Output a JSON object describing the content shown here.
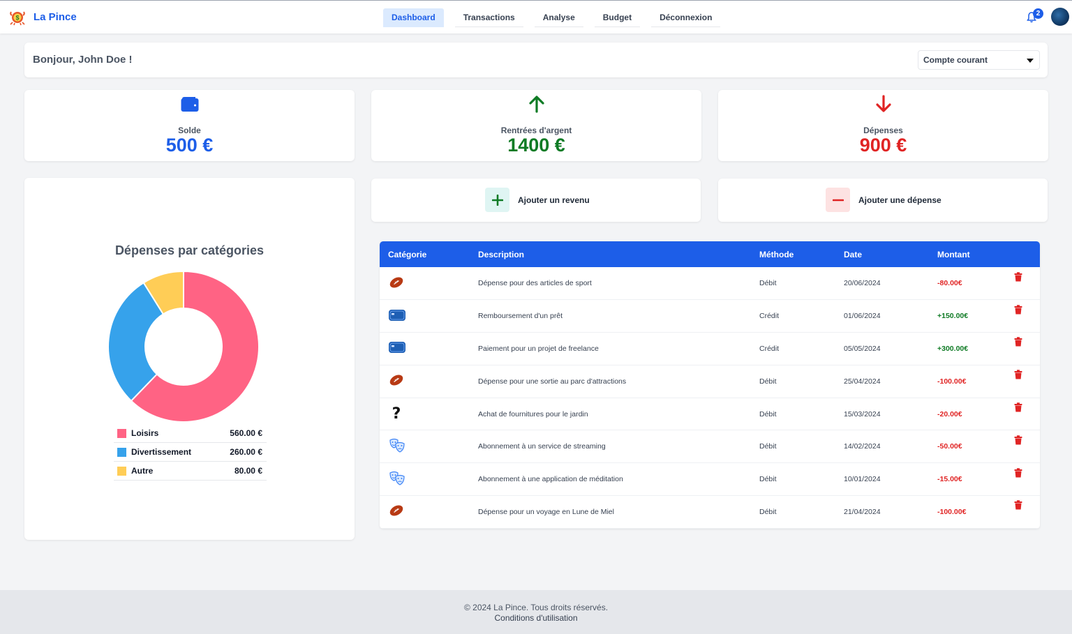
{
  "nav": {
    "brand": "La Pince",
    "links": [
      {
        "label": "Dashboard",
        "active": true
      },
      {
        "label": "Transactions",
        "active": false
      },
      {
        "label": "Analyse",
        "active": false
      },
      {
        "label": "Budget",
        "active": false
      },
      {
        "label": "Déconnexion",
        "active": false
      }
    ],
    "notification_count": "2",
    "icons": {
      "bell": "bell-icon",
      "avatar": "avatar"
    }
  },
  "greeting": "Bonjour, John Doe !",
  "account_select": {
    "value": "Compte courant"
  },
  "stats": {
    "balance": {
      "label": "Solde",
      "value": "500 €",
      "color": "#1d5ee8",
      "icon": "wallet-icon"
    },
    "income": {
      "label": "Rentrées d'argent",
      "value": "1400 €",
      "color": "#0f7b25",
      "icon": "arrow-up-icon"
    },
    "expenses": {
      "label": "Dépenses",
      "value": "900 €",
      "color": "#e02424",
      "icon": "arrow-down-icon"
    }
  },
  "actions": {
    "add_income": "Ajouter un revenu",
    "add_expense": "Ajouter une dépense"
  },
  "chart_data": {
    "type": "pie",
    "title": "Dépenses par catégories",
    "categories": [
      "Loisirs",
      "Divertissement",
      "Autre"
    ],
    "values": [
      560,
      260,
      80
    ],
    "amounts": [
      "560.00 €",
      "260.00 €",
      "80.00 €"
    ],
    "colors": [
      "#ff6384",
      "#36a2eb",
      "#ffcd56"
    ],
    "donut": true
  },
  "table": {
    "headers": [
      "Catégorie",
      "Description",
      "Méthode",
      "Date",
      "Montant"
    ],
    "rows": [
      {
        "icon": "football-icon",
        "description": "Dépense pour des articles de sport",
        "method": "Débit",
        "date": "20/06/2024",
        "amount": "-80.00€",
        "sign": "neg"
      },
      {
        "icon": "credit-card-icon",
        "description": "Remboursement d'un prêt",
        "method": "Crédit",
        "date": "01/06/2024",
        "amount": "+150.00€",
        "sign": "pos"
      },
      {
        "icon": "credit-card-icon",
        "description": "Paiement pour un projet de freelance",
        "method": "Crédit",
        "date": "05/05/2024",
        "amount": "+300.00€",
        "sign": "pos"
      },
      {
        "icon": "football-icon",
        "description": "Dépense pour une sortie au parc d'attractions",
        "method": "Débit",
        "date": "25/04/2024",
        "amount": "-100.00€",
        "sign": "neg"
      },
      {
        "icon": "question-icon",
        "description": "Achat de fournitures pour le jardin",
        "method": "Débit",
        "date": "15/03/2024",
        "amount": "-20.00€",
        "sign": "neg"
      },
      {
        "icon": "theater-masks-icon",
        "description": "Abonnement à un service de streaming",
        "method": "Débit",
        "date": "14/02/2024",
        "amount": "-50.00€",
        "sign": "neg"
      },
      {
        "icon": "theater-masks-icon",
        "description": "Abonnement à une application de méditation",
        "method": "Débit",
        "date": "10/01/2024",
        "amount": "-15.00€",
        "sign": "neg"
      },
      {
        "icon": "football-icon",
        "description": "Dépense pour un voyage en Lune de Miel",
        "method": "Débit",
        "date": "21/04/2024",
        "amount": "-100.00€",
        "sign": "neg"
      }
    ]
  },
  "footer": {
    "copyright": "© 2024 La Pince. Tous droits réservés.",
    "terms": "Conditions d'utilisation"
  }
}
